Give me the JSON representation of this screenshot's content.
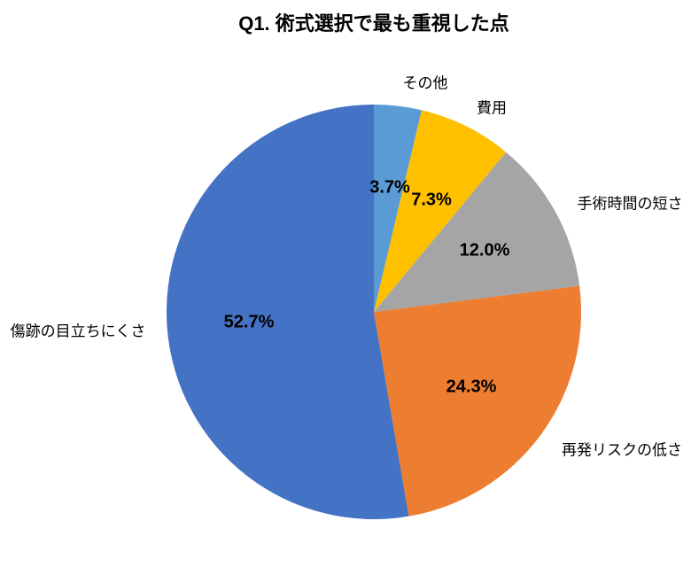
{
  "title": "Q1. 術式選択で最も重視した点",
  "chart_data": {
    "type": "pie",
    "title": "Q1. 術式選択で最も重視した点",
    "categories": [
      "傷跡の目立ちにくさ",
      "再発リスクの低さ",
      "手術時間の短さ",
      "費用",
      "その他"
    ],
    "values": [
      52.7,
      24.3,
      12.0,
      7.3,
      3.7
    ],
    "percent_labels": [
      "52.7%",
      "24.3%",
      "12.0%",
      "7.3%",
      "3.7%"
    ],
    "colors": [
      "#4472C4",
      "#ED7D31",
      "#A5A5A5",
      "#FFC000",
      "#5B9BD5"
    ],
    "units": "%",
    "start_angle_deg": 90,
    "direction": "counterclockwise",
    "legend": "none",
    "grid": "off",
    "background": "#ffffff",
    "text_color": "#000000"
  }
}
